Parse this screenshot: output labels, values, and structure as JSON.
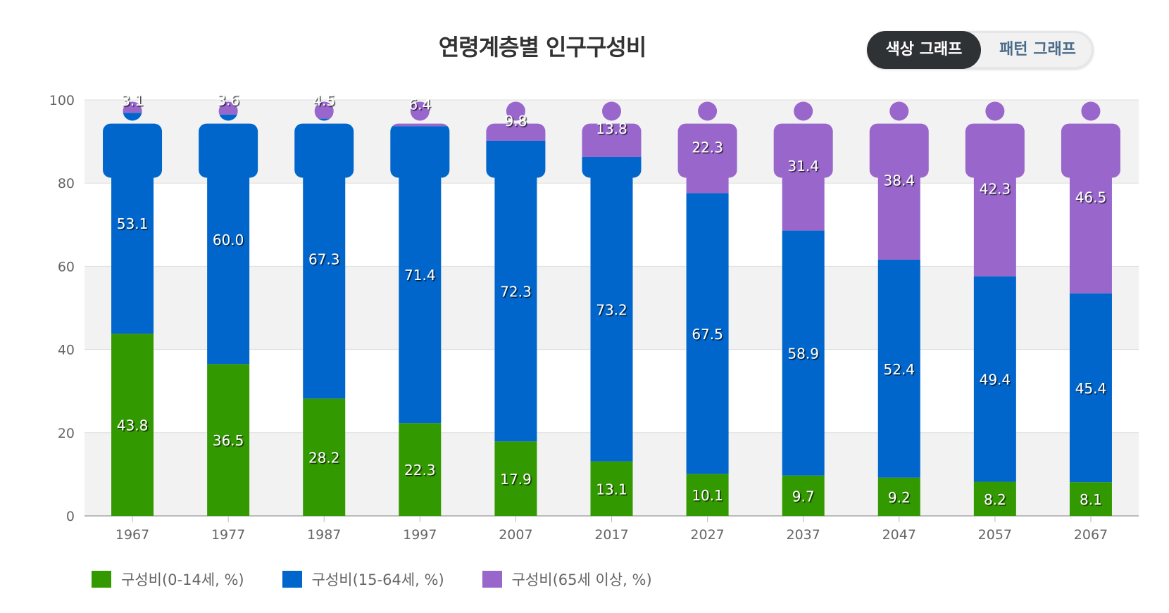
{
  "header": {
    "title": "연령계층별 인구구성비"
  },
  "view_toggle": {
    "options": [
      {
        "label": "색상 그래프",
        "active": true
      },
      {
        "label": "패턴 그래프",
        "active": false
      }
    ]
  },
  "legend": {
    "items": [
      {
        "label": "구성비(0-14세, %)",
        "color": "#339900"
      },
      {
        "label": "구성비(15-64세, %)",
        "color": "#0066cc"
      },
      {
        "label": "구성비(65세 이상, %)",
        "color": "#9966cc"
      }
    ]
  },
  "chart_data": {
    "type": "bar",
    "stacked": true,
    "title": "연령계층별 인구구성비",
    "xlabel": "",
    "ylabel": "",
    "ylim": [
      0,
      100
    ],
    "yticks": [
      0,
      20,
      40,
      60,
      80,
      100
    ],
    "grid": true,
    "legend_position": "bottom-left",
    "categories": [
      "1967",
      "1977",
      "1987",
      "1997",
      "2007",
      "2017",
      "2027",
      "2037",
      "2047",
      "2057",
      "2067"
    ],
    "series": [
      {
        "name": "구성비(0-14세, %)",
        "color": "#339900",
        "values": [
          43.8,
          36.5,
          28.2,
          22.3,
          17.9,
          13.1,
          10.1,
          9.7,
          9.2,
          8.2,
          8.1
        ]
      },
      {
        "name": "구성비(15-64세, %)",
        "color": "#0066cc",
        "values": [
          53.1,
          60.0,
          67.3,
          71.4,
          72.3,
          73.2,
          67.5,
          58.9,
          52.4,
          49.4,
          45.4
        ]
      },
      {
        "name": "구성비(65세 이상, %)",
        "color": "#9966cc",
        "values": [
          3.1,
          3.6,
          4.5,
          6.4,
          9.8,
          13.8,
          22.3,
          31.4,
          38.4,
          42.3,
          46.5
        ]
      }
    ],
    "data_label_format": "0.0"
  },
  "colors": {
    "grid_band": "#f2f2f2",
    "grid_line": "#dddddd",
    "axis": "#bbbbbb",
    "tick_label": "#666666",
    "data_label": "#ffffff"
  }
}
